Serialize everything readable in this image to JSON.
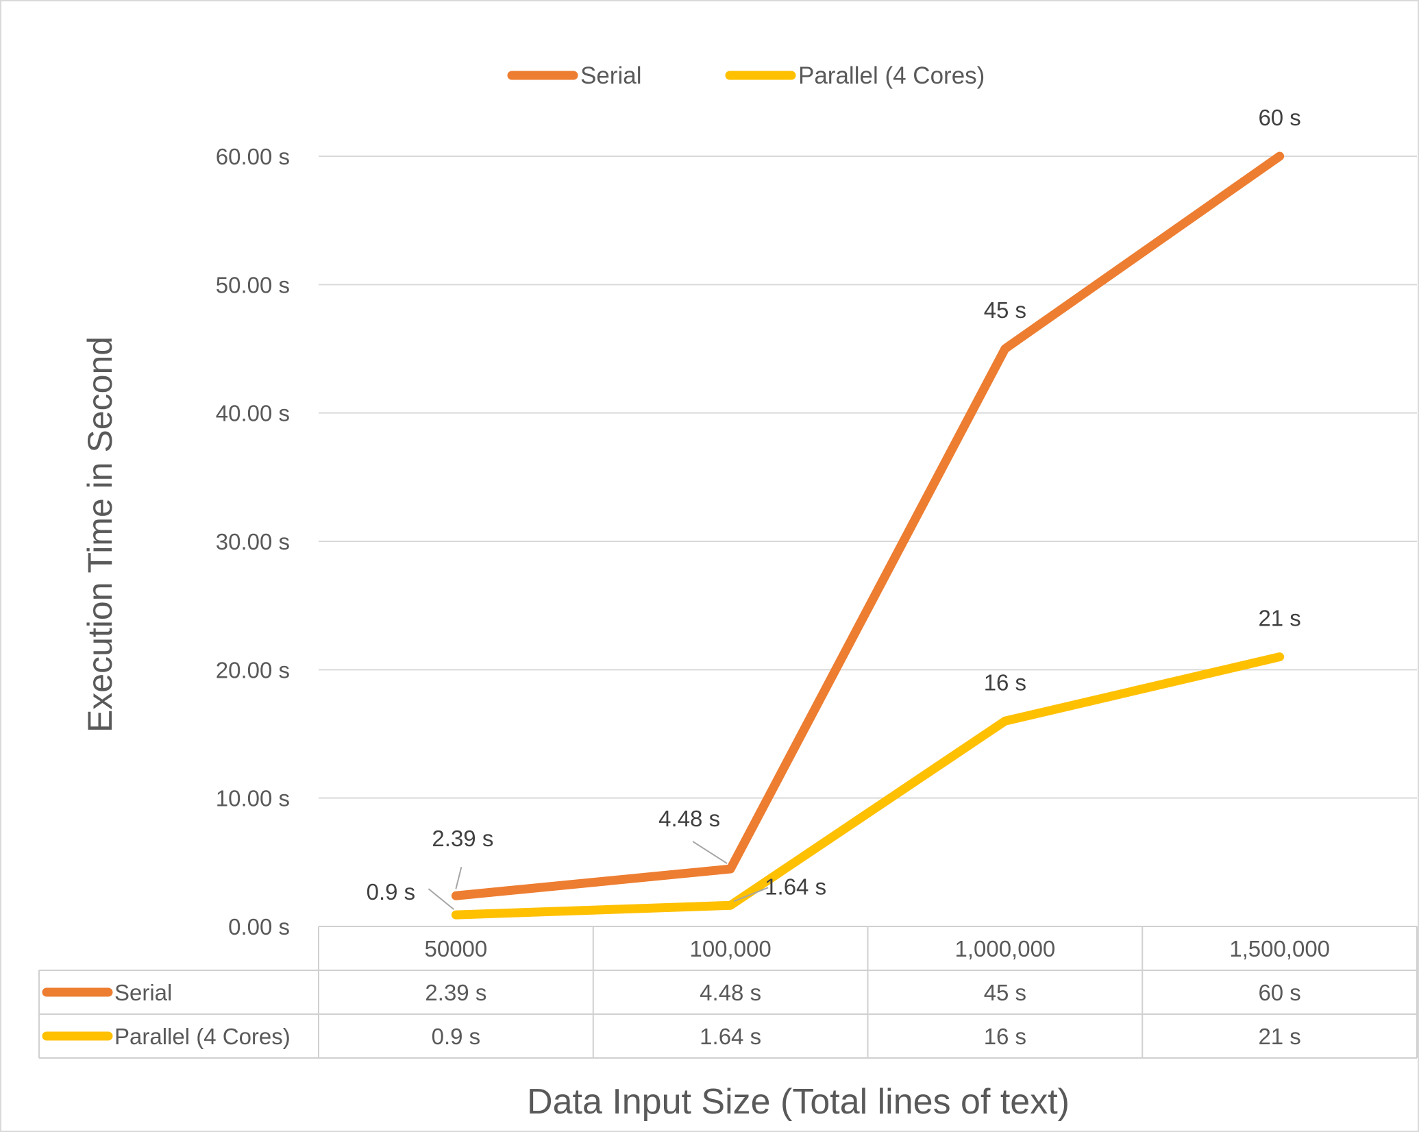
{
  "chart_data": {
    "type": "line",
    "title": "",
    "xlabel": "Data Input Size (Total lines of text)",
    "ylabel": "Execution  Time in Second",
    "categories": [
      "50000",
      "100,000",
      "1,000,000",
      "1,500,000"
    ],
    "ylim": [
      0,
      60
    ],
    "y_ticks": [
      0,
      10,
      20,
      30,
      40,
      50,
      60
    ],
    "y_tick_labels": [
      "0.00 s",
      "10.00 s",
      "20.00 s",
      "30.00 s",
      "40.00 s",
      "50.00 s",
      "60.00 s"
    ],
    "grid": true,
    "legend_position": "top",
    "series": [
      {
        "name": "Serial",
        "color": "#ED7D31",
        "values": [
          2.39,
          4.48,
          45,
          60
        ],
        "labels": [
          "2.39 s",
          "4.48 s",
          "45 s",
          "60 s"
        ]
      },
      {
        "name": "Parallel (4 Cores)",
        "color": "#FFC000",
        "values": [
          0.9,
          1.64,
          16,
          21
        ],
        "labels": [
          "0.9 s",
          "1.64 s",
          "16 s",
          "21 s"
        ]
      }
    ],
    "data_table": true
  }
}
